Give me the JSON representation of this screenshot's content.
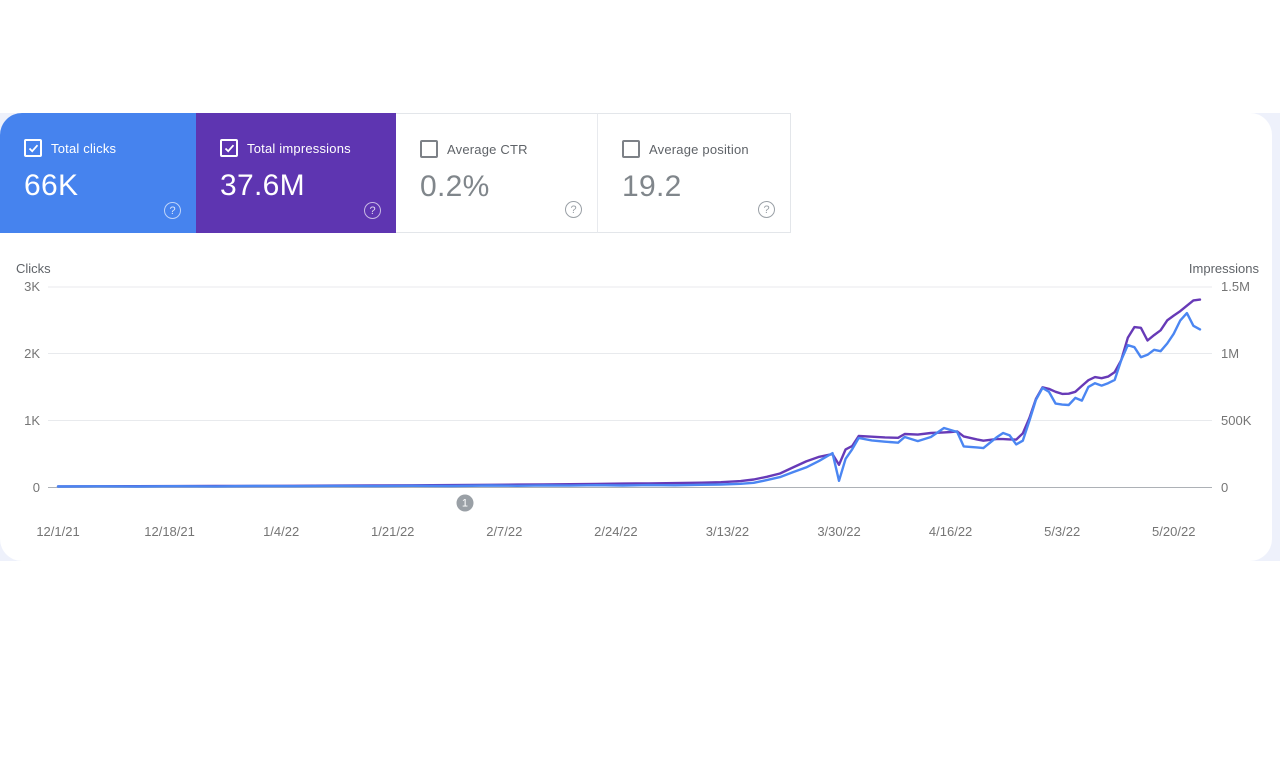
{
  "colors": {
    "clicks_accent": "#4683ee",
    "impressions_accent": "#5e35b1",
    "page_band": "#eef1fb",
    "panel": "#ffffff",
    "gridline": "#e8eaed",
    "zero_line": "#adb1b6",
    "tick_text": "#757575",
    "marker_badge": "#9aa0a6"
  },
  "icons": {
    "help_glyph": "?",
    "check_icon": "checkmark",
    "marker_icon": "annotation-circle"
  },
  "cards": [
    {
      "label": "Total clicks",
      "value": "66K",
      "checked": true
    },
    {
      "label": "Total impressions",
      "value": "37.6M",
      "checked": true
    },
    {
      "label": "Average CTR",
      "value": "0.2%",
      "checked": false
    },
    {
      "label": "Average position",
      "value": "19.2",
      "checked": false
    }
  ],
  "chart_data": {
    "type": "line",
    "left_axis": {
      "title": "Clicks",
      "ticks": [
        "3K",
        "2K",
        "1K",
        "0"
      ],
      "max": 3000,
      "min": 0
    },
    "right_axis": {
      "title": "Impressions",
      "ticks": [
        "1.5M",
        "1M",
        "500K",
        "0"
      ],
      "max": 1500000,
      "min": 0
    },
    "grid": "horizontal-only",
    "legend": "none",
    "x_tick_labels": [
      "12/1/21",
      "12/18/21",
      "1/4/22",
      "1/21/22",
      "2/7/22",
      "2/24/22",
      "3/13/22",
      "3/30/22",
      "4/16/22",
      "5/3/22",
      "5/20/22"
    ],
    "x_tick_days": [
      0,
      17,
      34,
      51,
      68,
      85,
      102,
      119,
      136,
      153,
      170
    ],
    "days_total": 174,
    "annotation_marker": {
      "label": "1",
      "day": 62
    },
    "series": [
      {
        "name": "Impressions",
        "axis": "right",
        "color": "#673ab7",
        "points": [
          [
            0,
            8000
          ],
          [
            6,
            9000
          ],
          [
            12,
            9500
          ],
          [
            18,
            10500
          ],
          [
            24,
            11000
          ],
          [
            30,
            12000
          ],
          [
            36,
            13000
          ],
          [
            42,
            14000
          ],
          [
            48,
            15000
          ],
          [
            54,
            16500
          ],
          [
            60,
            18000
          ],
          [
            66,
            20000
          ],
          [
            70,
            21500
          ],
          [
            74,
            23000
          ],
          [
            78,
            25000
          ],
          [
            82,
            27000
          ],
          [
            86,
            29000
          ],
          [
            90,
            31000
          ],
          [
            94,
            33000
          ],
          [
            98,
            36000
          ],
          [
            101,
            40000
          ],
          [
            104,
            48000
          ],
          [
            106,
            60000
          ],
          [
            108,
            80000
          ],
          [
            110,
            105000
          ],
          [
            112,
            150000
          ],
          [
            114,
            195000
          ],
          [
            116,
            230000
          ],
          [
            118,
            250000
          ],
          [
            119,
            170000
          ],
          [
            120,
            285000
          ],
          [
            121,
            310000
          ],
          [
            122,
            385000
          ],
          [
            124,
            380000
          ],
          [
            126,
            375000
          ],
          [
            128,
            372000
          ],
          [
            129,
            400000
          ],
          [
            131,
            396000
          ],
          [
            133,
            408000
          ],
          [
            135,
            412000
          ],
          [
            136,
            415000
          ],
          [
            137,
            420000
          ],
          [
            138,
            382000
          ],
          [
            140,
            360000
          ],
          [
            141,
            350000
          ],
          [
            143,
            362000
          ],
          [
            144,
            362000
          ],
          [
            145,
            360000
          ],
          [
            146,
            358000
          ],
          [
            147,
            405000
          ],
          [
            148,
            520000
          ],
          [
            149,
            662000
          ],
          [
            150,
            750000
          ],
          [
            151,
            738000
          ],
          [
            152,
            716000
          ],
          [
            153,
            700000
          ],
          [
            154,
            702000
          ],
          [
            155,
            716000
          ],
          [
            156,
            760000
          ],
          [
            157,
            803000
          ],
          [
            158,
            826000
          ],
          [
            159,
            818000
          ],
          [
            160,
            830000
          ],
          [
            161,
            863000
          ],
          [
            162,
            952000
          ],
          [
            163,
            1120000
          ],
          [
            164,
            1200000
          ],
          [
            165,
            1195000
          ],
          [
            166,
            1100000
          ],
          [
            167,
            1140000
          ],
          [
            168,
            1176000
          ],
          [
            169,
            1250000
          ],
          [
            170,
            1286000
          ],
          [
            171,
            1320000
          ],
          [
            172,
            1360000
          ],
          [
            173,
            1400000
          ],
          [
            174,
            1406000
          ]
        ]
      },
      {
        "name": "Clicks",
        "axis": "left",
        "color": "#4b86f2",
        "points": [
          [
            0,
            15
          ],
          [
            6,
            18
          ],
          [
            12,
            15
          ],
          [
            18,
            20
          ],
          [
            24,
            17
          ],
          [
            30,
            22
          ],
          [
            36,
            19
          ],
          [
            42,
            24
          ],
          [
            48,
            21
          ],
          [
            54,
            26
          ],
          [
            60,
            23
          ],
          [
            66,
            30
          ],
          [
            70,
            26
          ],
          [
            74,
            32
          ],
          [
            78,
            28
          ],
          [
            82,
            34
          ],
          [
            86,
            30
          ],
          [
            90,
            36
          ],
          [
            94,
            33
          ],
          [
            98,
            40
          ],
          [
            101,
            45
          ],
          [
            104,
            55
          ],
          [
            106,
            70
          ],
          [
            108,
            110
          ],
          [
            110,
            155
          ],
          [
            112,
            230
          ],
          [
            114,
            300
          ],
          [
            116,
            400
          ],
          [
            118,
            515
          ],
          [
            119,
            100
          ],
          [
            120,
            430
          ],
          [
            121,
            570
          ],
          [
            122,
            740
          ],
          [
            124,
            705
          ],
          [
            126,
            685
          ],
          [
            128,
            670
          ],
          [
            129,
            755
          ],
          [
            131,
            695
          ],
          [
            133,
            755
          ],
          [
            135,
            890
          ],
          [
            136,
            860
          ],
          [
            137,
            830
          ],
          [
            138,
            615
          ],
          [
            140,
            600
          ],
          [
            141,
            590
          ],
          [
            143,
            750
          ],
          [
            144,
            815
          ],
          [
            145,
            780
          ],
          [
            146,
            645
          ],
          [
            147,
            700
          ],
          [
            148,
            1000
          ],
          [
            149,
            1310
          ],
          [
            150,
            1490
          ],
          [
            151,
            1430
          ],
          [
            152,
            1255
          ],
          [
            153,
            1240
          ],
          [
            154,
            1235
          ],
          [
            155,
            1340
          ],
          [
            156,
            1300
          ],
          [
            157,
            1505
          ],
          [
            158,
            1560
          ],
          [
            159,
            1525
          ],
          [
            160,
            1560
          ],
          [
            161,
            1610
          ],
          [
            162,
            1905
          ],
          [
            163,
            2130
          ],
          [
            164,
            2100
          ],
          [
            165,
            1950
          ],
          [
            166,
            1985
          ],
          [
            167,
            2060
          ],
          [
            168,
            2040
          ],
          [
            169,
            2155
          ],
          [
            170,
            2300
          ],
          [
            171,
            2500
          ],
          [
            172,
            2610
          ],
          [
            173,
            2420
          ],
          [
            174,
            2365
          ]
        ]
      }
    ]
  }
}
